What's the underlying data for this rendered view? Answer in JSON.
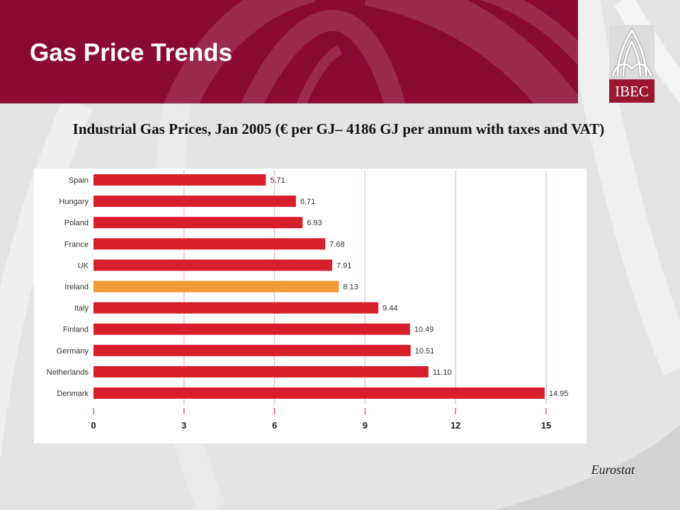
{
  "slide": {
    "title": "Gas Price Trends",
    "source": "Eurostat",
    "logo_text": "IBEC"
  },
  "colors": {
    "banner": "#8b0a33",
    "logo_band": "#9b1631",
    "background": "#e4e4e4",
    "bar": "#d71f2b",
    "highlight_bar": "#f29a37",
    "grid": "#f2c8bd",
    "tick": "#e35c66",
    "label": "#333333"
  },
  "chart_data": {
    "type": "bar",
    "orientation": "horizontal",
    "title": "Industrial Gas Prices, Jan 2005 (€ per GJ– 4186 GJ per annum with taxes and VAT)",
    "xlabel": "",
    "ylabel": "",
    "categories": [
      "Spain",
      "Hungary",
      "Poland",
      "France",
      "UK",
      "Ireland",
      "Italy",
      "Finland",
      "Germany",
      "Netherlands",
      "Denmark"
    ],
    "values": [
      5.71,
      6.71,
      6.93,
      7.68,
      7.91,
      8.13,
      9.44,
      10.49,
      10.51,
      11.1,
      14.95
    ],
    "value_labels": [
      "5.71",
      "6.71",
      "6.93",
      "7.68",
      "7.91",
      "8.13",
      "9.44",
      "10.49",
      "10.51",
      "11.10",
      "14.95"
    ],
    "bar_colors": [
      "#d71f2b",
      "#d71f2b",
      "#d71f2b",
      "#d71f2b",
      "#d71f2b",
      "#f29a37",
      "#d71f2b",
      "#d71f2b",
      "#d71f2b",
      "#d71f2b",
      "#d71f2b"
    ],
    "xlim": [
      0,
      15
    ],
    "xticks": [
      0,
      3,
      6,
      9,
      12,
      15
    ],
    "xtick_labels": [
      "0",
      "3",
      "6",
      "9",
      "12",
      "15"
    ],
    "grid": true
  }
}
